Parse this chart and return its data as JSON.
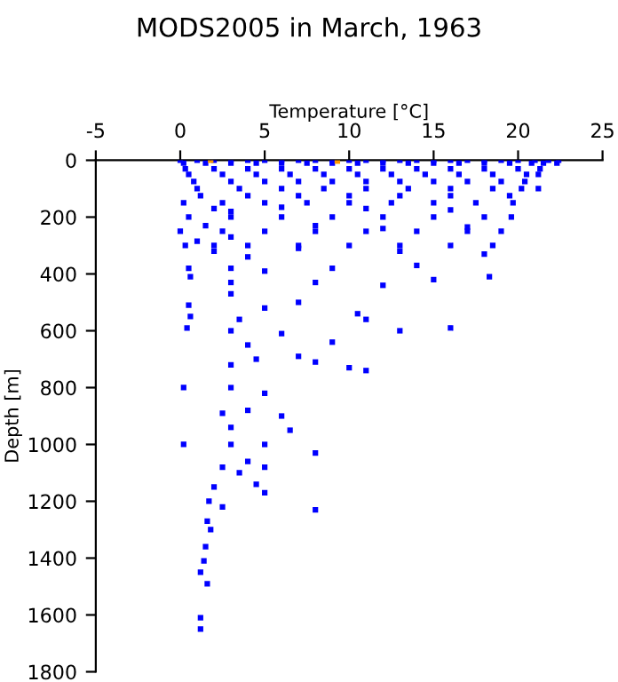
{
  "chart_data": {
    "type": "scatter",
    "title": "MODS2005 in March, 1963",
    "xlabel": "Temperature [°C]",
    "ylabel": "Depth [m]",
    "xlim": [
      -5,
      25
    ],
    "xticks": [
      -5,
      0,
      5,
      10,
      15,
      20,
      25
    ],
    "ylim": [
      1800,
      0
    ],
    "yticks": [
      0,
      200,
      400,
      600,
      800,
      1000,
      1200,
      1400,
      1600,
      1800
    ],
    "grid": false,
    "legend": false,
    "marker": "square",
    "series": [
      {
        "color": "#0000ff",
        "x": [
          0,
          1,
          2,
          3,
          4,
          5,
          6,
          7,
          8,
          9,
          10,
          11,
          12,
          13,
          14,
          15,
          16,
          17,
          18,
          19,
          20,
          21,
          21.8,
          22.4,
          0.2,
          1.5,
          3,
          4.5,
          6,
          7.5,
          9,
          10.5,
          12,
          13.5,
          15,
          16.5,
          18,
          19.5,
          20.8,
          21.5,
          22.3,
          0.3,
          2,
          4,
          6,
          8,
          10,
          12,
          14,
          16,
          18,
          20,
          21.3,
          0.5,
          2.5,
          4.5,
          6.5,
          8.5,
          10.5,
          12.5,
          14.5,
          16.5,
          18.5,
          20.5,
          21.2,
          0.8,
          3,
          5,
          7,
          9,
          11,
          13,
          15,
          17,
          19,
          20.4,
          1,
          3.5,
          6,
          8.5,
          11,
          13.5,
          16,
          18.5,
          20.2,
          21.2,
          1.2,
          4,
          7,
          10,
          13,
          16,
          19.5,
          0.2,
          2.5,
          5,
          7.5,
          10,
          12.5,
          15,
          17.5,
          19.7,
          0.5,
          3,
          6,
          9,
          12,
          15,
          18,
          19.6,
          0,
          2.5,
          5,
          8,
          11,
          14,
          17,
          19,
          0.3,
          2,
          4,
          7,
          10,
          13,
          16,
          18.5,
          2,
          3,
          6,
          11,
          16,
          1.5,
          3,
          8,
          12,
          17,
          1,
          2,
          4,
          7,
          13,
          18,
          0.5,
          0.6,
          3,
          5,
          9,
          14,
          18.3,
          15,
          12,
          8,
          3,
          0.5,
          0.6,
          0.4,
          3,
          5,
          7,
          10.5,
          11,
          16,
          13,
          9,
          6,
          3,
          3.5,
          4,
          3,
          8,
          10,
          11,
          7,
          4.5,
          0.2,
          3,
          5,
          4,
          2.5,
          3,
          6,
          6.5,
          5,
          3,
          0.2,
          8,
          4,
          2.5,
          3.5,
          5,
          2,
          4.5,
          5,
          1.7,
          2.5,
          8,
          1.6,
          1.8,
          1.5,
          1.4,
          1.2,
          1.6,
          1.2,
          1.2
        ],
        "values": [
          0,
          0,
          0,
          0,
          0,
          0,
          0,
          0,
          0,
          0,
          0,
          0,
          0,
          0,
          0,
          0,
          0,
          0,
          0,
          0,
          0,
          0,
          0,
          0,
          10,
          10,
          10,
          10,
          10,
          10,
          10,
          10,
          10,
          10,
          10,
          10,
          10,
          10,
          10,
          10,
          10,
          30,
          30,
          30,
          30,
          30,
          30,
          30,
          30,
          30,
          30,
          30,
          30,
          50,
          50,
          50,
          50,
          50,
          50,
          50,
          50,
          50,
          50,
          50,
          50,
          75,
          75,
          75,
          75,
          75,
          75,
          75,
          75,
          75,
          75,
          75,
          100,
          100,
          100,
          100,
          100,
          100,
          100,
          100,
          100,
          100,
          125,
          125,
          125,
          125,
          125,
          125,
          125,
          150,
          150,
          150,
          150,
          150,
          150,
          150,
          150,
          150,
          200,
          200,
          200,
          200,
          200,
          200,
          200,
          200,
          250,
          250,
          250,
          250,
          250,
          250,
          250,
          250,
          300,
          300,
          300,
          300,
          300,
          300,
          300,
          300,
          170,
          180,
          165,
          170,
          175,
          230,
          270,
          230,
          240,
          235,
          285,
          320,
          340,
          310,
          320,
          330,
          380,
          410,
          380,
          390,
          380,
          370,
          410,
          420,
          440,
          430,
          430,
          510,
          550,
          590,
          470,
          520,
          500,
          540,
          560,
          590,
          600,
          640,
          610,
          600,
          560,
          650,
          720,
          710,
          730,
          740,
          690,
          700,
          800,
          800,
          820,
          880,
          890,
          940,
          900,
          950,
          1000,
          1000,
          1000,
          1030,
          1060,
          1080,
          1100,
          1080,
          1150,
          1140,
          1170,
          1200,
          1220,
          1230,
          1270,
          1300,
          1360,
          1410,
          1450,
          1490,
          1610,
          1650
        ]
      },
      {
        "color": "#ff9900",
        "x": [
          1.8,
          9.3
        ],
        "values": [
          0,
          3
        ]
      }
    ]
  }
}
